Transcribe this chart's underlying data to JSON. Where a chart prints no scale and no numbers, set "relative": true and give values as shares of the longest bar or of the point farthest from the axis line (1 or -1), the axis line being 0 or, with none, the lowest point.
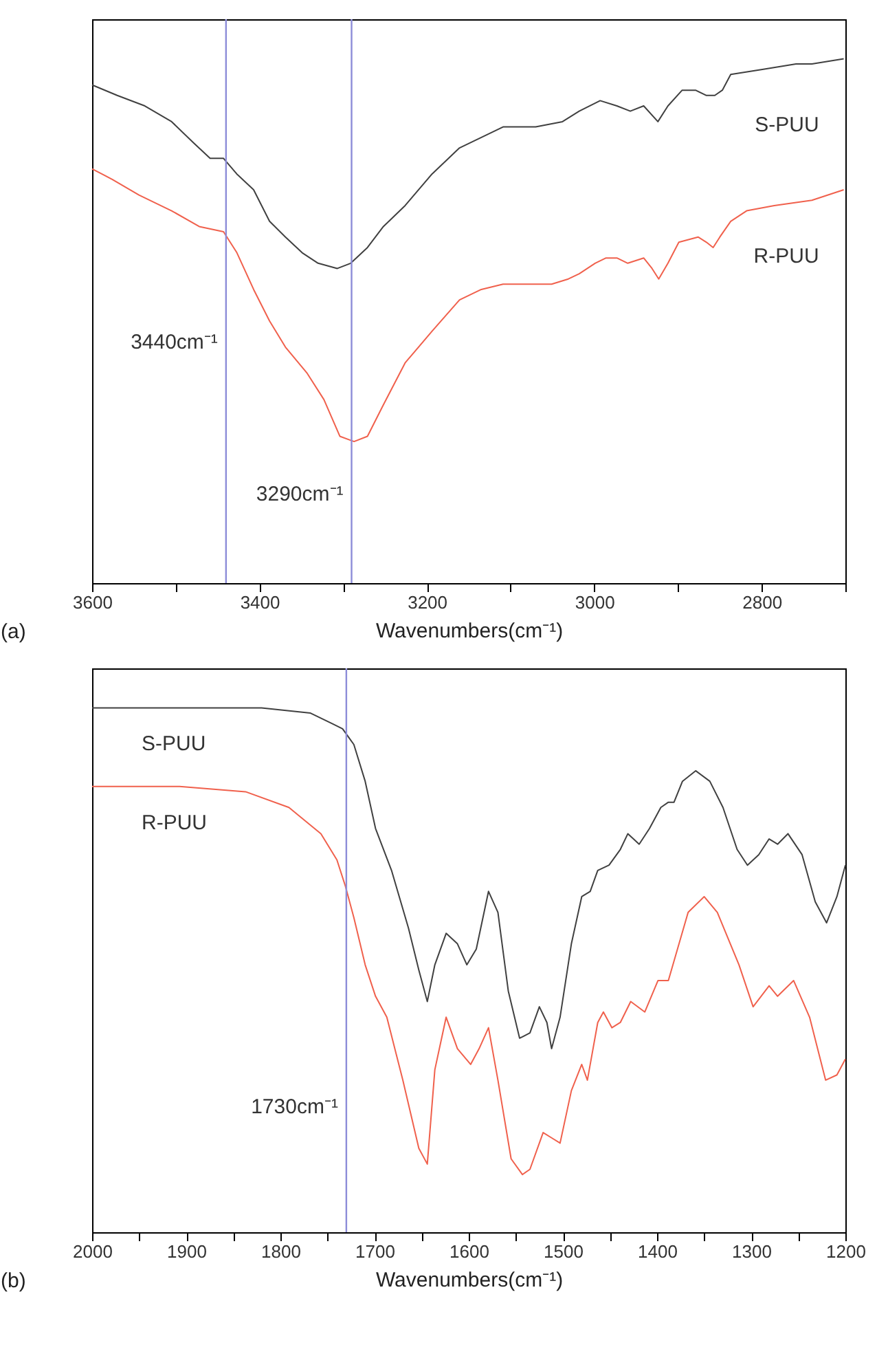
{
  "chart_data": [
    {
      "type": "line",
      "relative": true,
      "xlabel": "Wavenumbers(cm⁻¹)",
      "xlim": [
        3600,
        2700
      ],
      "xticks": [
        3600,
        {
          "value": 3500,
          "label": null
        },
        3400,
        {
          "value": 3300,
          "label": null
        },
        3200,
        {
          "value": 3100,
          "label": null
        },
        3000,
        {
          "value": 2900,
          "label": null
        },
        2800,
        {
          "value": 2700,
          "label": null
        }
      ],
      "series": [
        {
          "name": "S-PUU",
          "color": "#404040",
          "x": [
            3600,
            3570,
            3537,
            3505,
            3479,
            3459,
            3443,
            3427,
            3407,
            3388,
            3369,
            3349,
            3330,
            3307,
            3291,
            3271,
            3252,
            3226,
            3194,
            3161,
            3135,
            3109,
            3070,
            3038,
            3018,
            2993,
            2973,
            2957,
            2941,
            2924,
            2912,
            2895,
            2879,
            2866,
            2856,
            2847,
            2837,
            2798,
            2759,
            2740,
            2702
          ],
          "values": [
            0.95,
            0.93,
            0.91,
            0.88,
            0.84,
            0.81,
            0.81,
            0.78,
            0.75,
            0.69,
            0.66,
            0.63,
            0.61,
            0.6,
            0.61,
            0.64,
            0.68,
            0.72,
            0.78,
            0.83,
            0.85,
            0.87,
            0.87,
            0.88,
            0.9,
            0.92,
            0.91,
            0.9,
            0.91,
            0.88,
            0.91,
            0.94,
            0.94,
            0.93,
            0.93,
            0.94,
            0.97,
            0.98,
            0.99,
            0.99,
            1
          ]
        },
        {
          "name": "R-PUU",
          "color": "#f0604c",
          "x": [
            3600,
            3576,
            3544,
            3505,
            3472,
            3443,
            3427,
            3407,
            3388,
            3369,
            3343,
            3323,
            3304,
            3287,
            3271,
            3252,
            3226,
            3194,
            3161,
            3135,
            3109,
            3083,
            3051,
            3031,
            3018,
            2999,
            2986,
            2973,
            2960,
            2941,
            2931,
            2923,
            2912,
            2899,
            2876,
            2866,
            2858,
            2850,
            2837,
            2818,
            2785,
            2740,
            2702
          ],
          "values": [
            0.79,
            0.77,
            0.74,
            0.71,
            0.68,
            0.67,
            0.63,
            0.56,
            0.5,
            0.45,
            0.4,
            0.35,
            0.28,
            0.27,
            0.28,
            0.34,
            0.42,
            0.48,
            0.54,
            0.56,
            0.57,
            0.57,
            0.57,
            0.58,
            0.59,
            0.61,
            0.62,
            0.62,
            0.61,
            0.62,
            0.6,
            0.58,
            0.61,
            0.65,
            0.66,
            0.65,
            0.64,
            0.66,
            0.69,
            0.71,
            0.72,
            0.73,
            0.75
          ]
        }
      ],
      "ref_lines": [
        {
          "axis": "x",
          "value": 3440,
          "color": "#8c8cd8"
        },
        {
          "axis": "x",
          "value": 3290,
          "color": "#8c8cd8"
        }
      ],
      "annotations": [
        {
          "text": "3440cm⁻¹",
          "x": 3440,
          "y": 0.46
        },
        {
          "text": "3290cm⁻¹",
          "x": 3290,
          "y": 0.17
        },
        "(a)"
      ]
    },
    {
      "type": "line",
      "relative": true,
      "xlabel": "Wavenumbers(cm⁻¹)",
      "xlim": [
        2000,
        1200
      ],
      "xticks": [
        2000,
        {
          "value": 1950,
          "label": null
        },
        1900,
        {
          "value": 1850,
          "label": null
        },
        1800,
        {
          "value": 1750,
          "label": null
        },
        1700,
        {
          "value": 1650,
          "label": null
        },
        1600,
        {
          "value": 1550,
          "label": null
        },
        1500,
        {
          "value": 1450,
          "label": null
        },
        1400,
        {
          "value": 1350,
          "label": null
        },
        1300,
        {
          "value": 1250,
          "label": null
        },
        1200
      ],
      "series": [
        {
          "name": "S-PUU",
          "color": "#404040",
          "x": [
            2000,
            1907,
            1820,
            1768,
            1745,
            1734,
            1722,
            1710,
            1699,
            1682,
            1664,
            1653,
            1644,
            1636,
            1624,
            1612,
            1602,
            1592,
            1579,
            1569,
            1558,
            1546,
            1535,
            1525,
            1517,
            1512,
            1503,
            1491,
            1480,
            1471,
            1463,
            1451,
            1439,
            1431,
            1419,
            1408,
            1396,
            1388,
            1382,
            1373,
            1359,
            1344,
            1330,
            1315,
            1304,
            1292,
            1281,
            1272,
            1261,
            1246,
            1232,
            1220,
            1209,
            1200
          ],
          "values": [
            1,
            1,
            1,
            0.99,
            0.97,
            0.96,
            0.93,
            0.86,
            0.77,
            0.69,
            0.58,
            0.5,
            0.44,
            0.51,
            0.57,
            0.55,
            0.51,
            0.54,
            0.65,
            0.61,
            0.46,
            0.37,
            0.38,
            0.43,
            0.4,
            0.35,
            0.41,
            0.55,
            0.64,
            0.65,
            0.69,
            0.7,
            0.73,
            0.76,
            0.74,
            0.77,
            0.81,
            0.82,
            0.82,
            0.86,
            0.88,
            0.86,
            0.81,
            0.73,
            0.7,
            0.72,
            0.75,
            0.74,
            0.76,
            0.72,
            0.63,
            0.59,
            0.64,
            0.7
          ]
        },
        {
          "name": "R-PUU",
          "color": "#f0604c",
          "x": [
            2000,
            1907,
            1837,
            1791,
            1757,
            1740,
            1731,
            1722,
            1710,
            1699,
            1687,
            1670,
            1653,
            1644,
            1636,
            1624,
            1612,
            1598,
            1589,
            1579,
            1569,
            1555,
            1543,
            1535,
            1521,
            1512,
            1503,
            1491,
            1480,
            1474,
            1463,
            1457,
            1448,
            1439,
            1428,
            1413,
            1399,
            1388,
            1367,
            1350,
            1336,
            1313,
            1298,
            1281,
            1272,
            1255,
            1238,
            1221,
            1209,
            1200
          ],
          "values": [
            0.85,
            0.85,
            0.84,
            0.81,
            0.76,
            0.71,
            0.66,
            0.6,
            0.51,
            0.45,
            0.41,
            0.29,
            0.16,
            0.13,
            0.31,
            0.41,
            0.35,
            0.32,
            0.35,
            0.39,
            0.29,
            0.14,
            0.11,
            0.12,
            0.19,
            0.18,
            0.17,
            0.27,
            0.32,
            0.29,
            0.4,
            0.42,
            0.39,
            0.4,
            0.44,
            0.42,
            0.48,
            0.48,
            0.61,
            0.64,
            0.61,
            0.51,
            0.43,
            0.47,
            0.45,
            0.48,
            0.41,
            0.29,
            0.3,
            0.33
          ]
        }
      ],
      "ref_lines": [
        {
          "axis": "x",
          "value": 1730,
          "color": "#8c8cd8"
        }
      ],
      "annotations": [
        {
          "text": "1730cm⁻¹",
          "x": 1730,
          "y": 0.24
        },
        "(b)"
      ]
    }
  ]
}
